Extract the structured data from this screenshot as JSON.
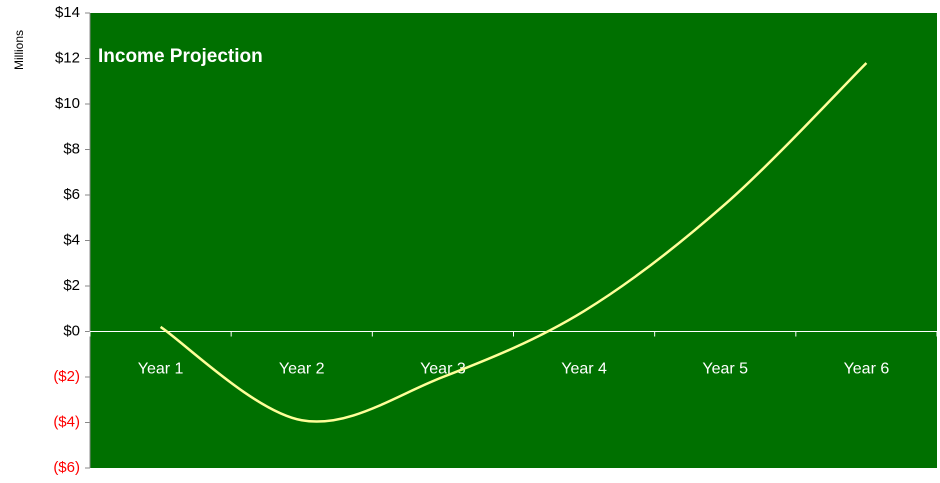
{
  "chart_data": {
    "type": "line",
    "title": "Income Projection",
    "y_axis_label": "Millions",
    "categories": [
      "Year 1",
      "Year 2",
      "Year 3",
      "Year 4",
      "Year 5",
      "Year 6"
    ],
    "series": [
      {
        "name": "Income",
        "color": "#ffff99",
        "values": [
          0.2,
          -3.9,
          -2.0,
          0.9,
          5.6,
          11.8
        ]
      }
    ],
    "ylim": [
      -6,
      14
    ],
    "yticks": [
      {
        "value": -6,
        "label": "($6)"
      },
      {
        "value": -4,
        "label": "($4)"
      },
      {
        "value": -2,
        "label": "($2)"
      },
      {
        "value": 0,
        "label": "$0"
      },
      {
        "value": 2,
        "label": "$2"
      },
      {
        "value": 4,
        "label": "$4"
      },
      {
        "value": 6,
        "label": "$6"
      },
      {
        "value": 8,
        "label": "$8"
      },
      {
        "value": 10,
        "label": "$10"
      },
      {
        "value": 12,
        "label": "$12"
      },
      {
        "value": 14,
        "label": "$14"
      }
    ],
    "plot_background": "#007000",
    "negative_tick_color": "#ff0000",
    "smooth": true
  }
}
